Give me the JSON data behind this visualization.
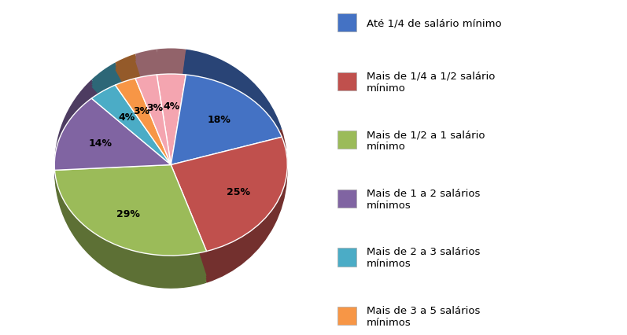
{
  "values": [
    4,
    18,
    25,
    29,
    14,
    4,
    3,
    3
  ],
  "colors": [
    "#F4A5B0",
    "#4472C4",
    "#C0504D",
    "#9BBB59",
    "#8064A2",
    "#4BACC6",
    "#F79646",
    "#F4A5B0"
  ],
  "pct_labels": [
    "4%",
    "18%",
    "25%",
    "29%",
    "14%",
    "4%",
    "3%",
    "3%"
  ],
  "legend_labels": [
    "Até 1/4 de salário mínimo",
    "Mais de 1/4 a 1/2 salário\nmínimo",
    "Mais de 1/2 a 1 salário\nmínimo",
    "Mais de 1 a 2 salários\nmínimos",
    "Mais de 2 a 3 salários\nmínimos",
    "Mais de 3 a 5 salários\nmínimos"
  ],
  "legend_colors": [
    "#4472C4",
    "#C0504D",
    "#9BBB59",
    "#8064A2",
    "#4BACC6",
    "#F79646"
  ],
  "background_color": "#FFFFFF",
  "text_color": "#000000",
  "startangle": 97,
  "label_fontsize": 9,
  "legend_fontsize": 9.5,
  "pct_label_colors": [
    "#000000",
    "#000000",
    "#000000",
    "#000000",
    "#000000",
    "#000000",
    "#000000",
    "#000000"
  ]
}
